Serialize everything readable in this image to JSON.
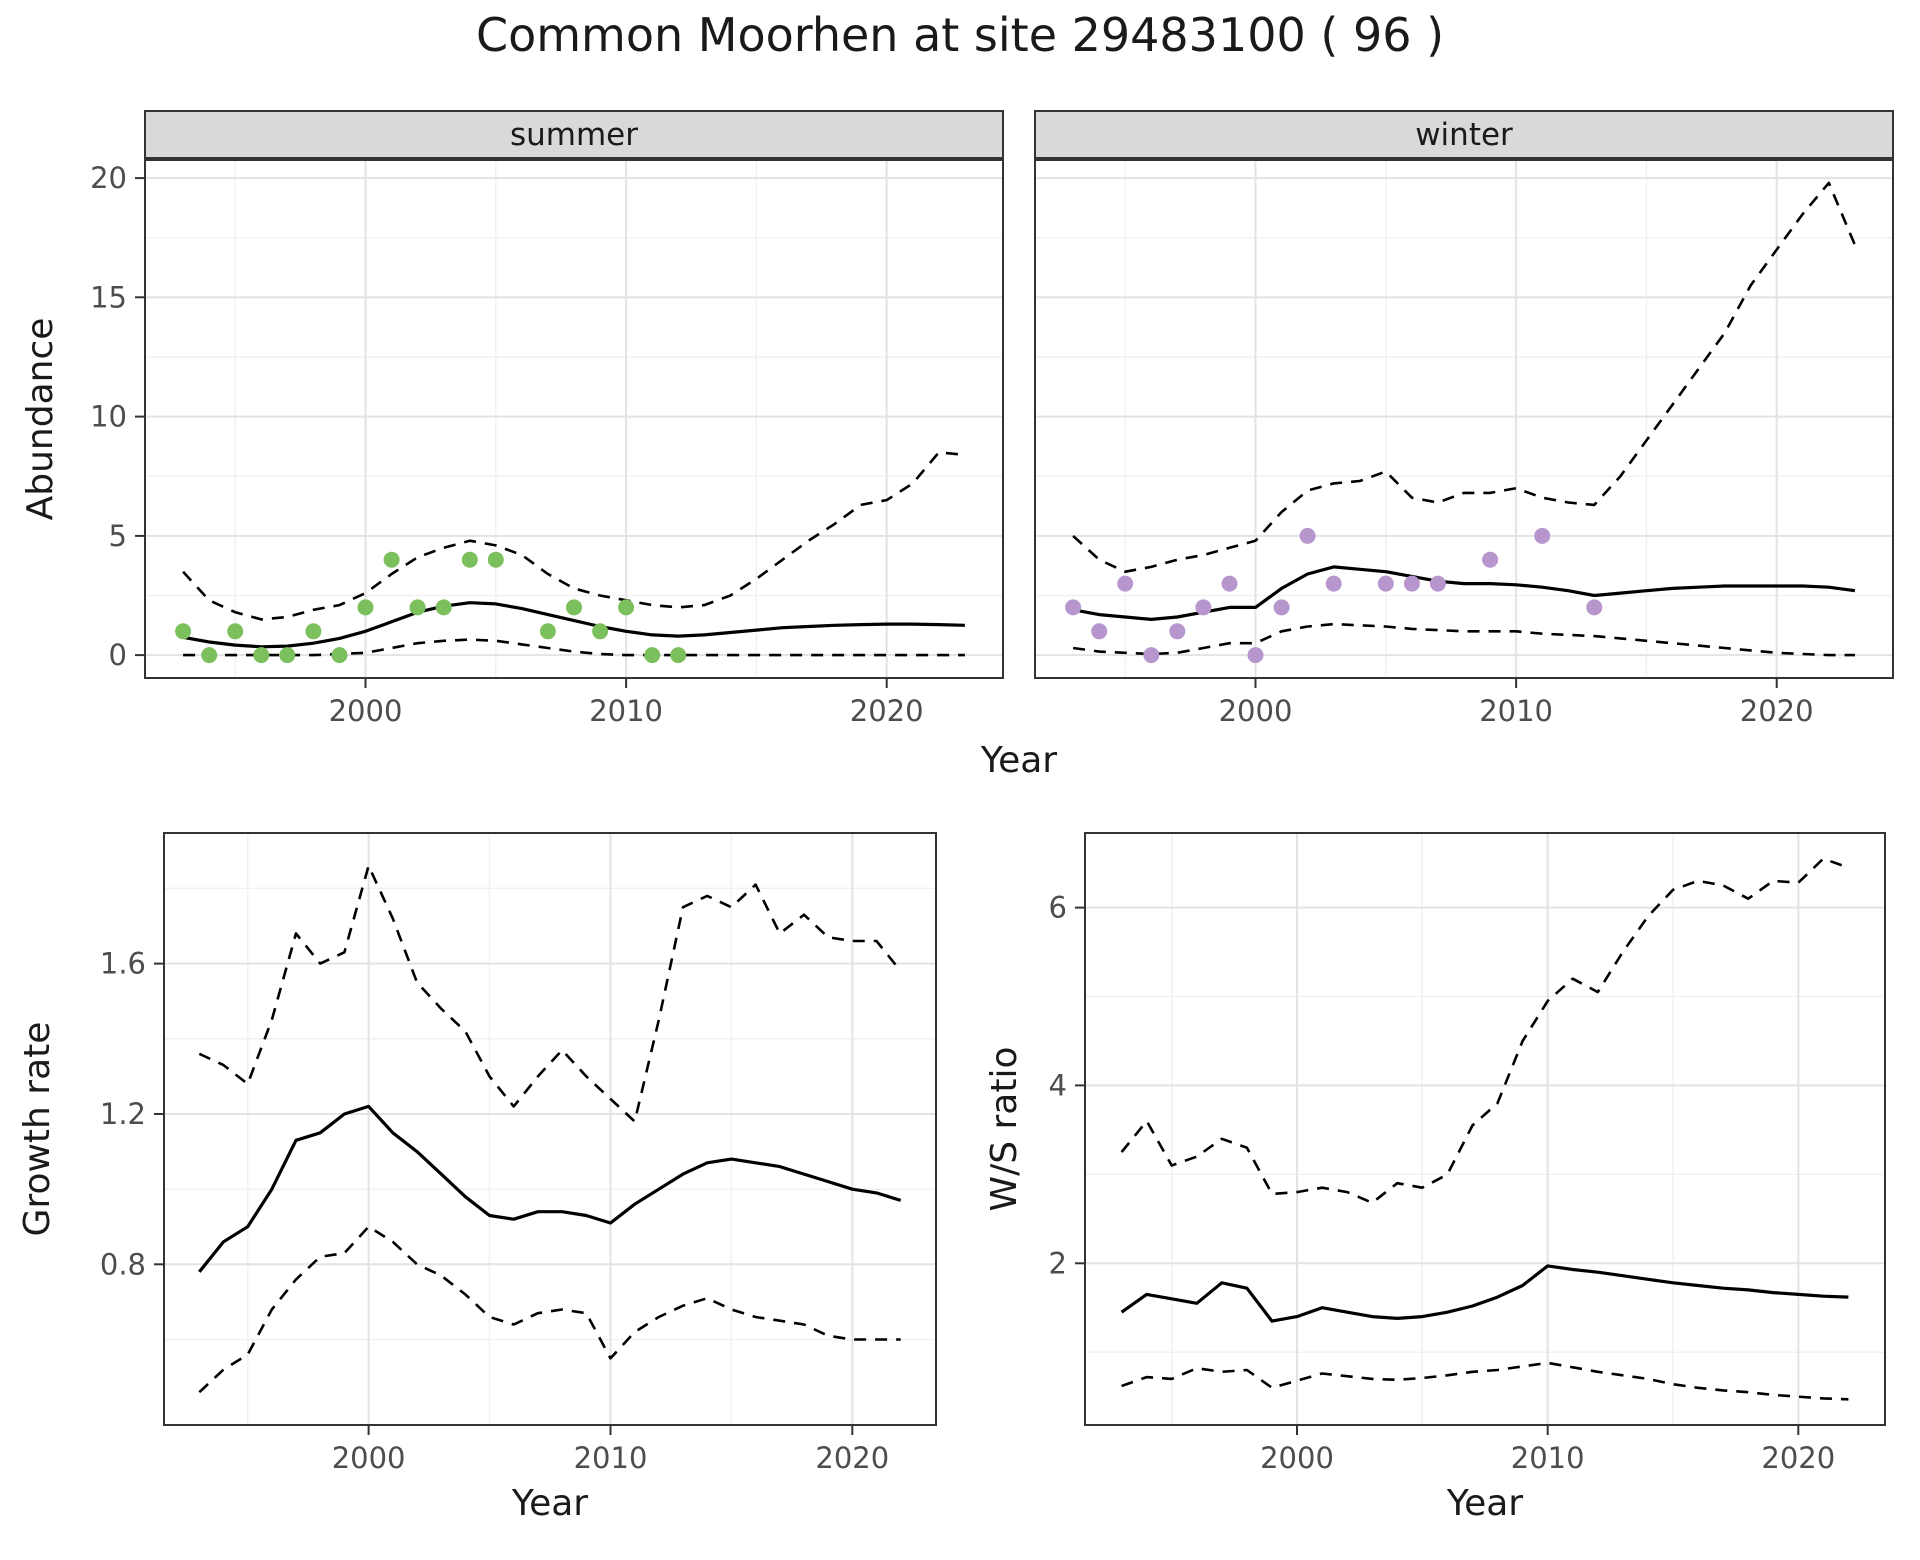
{
  "title": "Common Moorhen at site 29483100 ( 96 )",
  "colors": {
    "summer_points": "#7cc05d",
    "winter_points": "#b796ce",
    "line": "#000000",
    "strip_bg": "#d9d9d9",
    "panel_border": "#333333",
    "grid_major": "#e3e3e3",
    "grid_minor": "#f1f1f1",
    "tick_label": "#4d4d4d",
    "tick_mark": "#333333",
    "text": "#1a1a1a"
  },
  "abundance_figure": {
    "ylabel": "Abundance",
    "xlabel": "Year",
    "facets": [
      {
        "label": "summer"
      },
      {
        "label": "winter"
      }
    ]
  },
  "growth_figure": {
    "ylabel": "Growth rate",
    "xlabel": "Year"
  },
  "ratio_figure": {
    "ylabel": "W/S ratio",
    "xlabel": "Year"
  },
  "chart_data": [
    {
      "id": "abundance-summer",
      "type": "line",
      "facet": "summer",
      "xlabel": "Year",
      "ylabel": "Abundance",
      "xlim": [
        1991.5,
        2024.5
      ],
      "ylim": [
        -1.0,
        20.8
      ],
      "xticks": [
        2000,
        2010,
        2020
      ],
      "yticks": [
        0,
        5,
        10,
        15,
        20
      ],
      "xminor": [
        1995,
        2005,
        2015
      ],
      "yminor": [
        2.5,
        7.5,
        12.5,
        17.5
      ],
      "x": [
        1993,
        1994,
        1995,
        1996,
        1997,
        1998,
        1999,
        2000,
        2001,
        2002,
        2003,
        2004,
        2005,
        2006,
        2007,
        2008,
        2009,
        2010,
        2011,
        2012,
        2013,
        2014,
        2015,
        2016,
        2017,
        2018,
        2019,
        2020,
        2021,
        2022,
        2023
      ],
      "series": [
        {
          "name": "fit",
          "style": "solid",
          "y": [
            0.75,
            0.55,
            0.42,
            0.35,
            0.38,
            0.5,
            0.7,
            1.0,
            1.4,
            1.8,
            2.05,
            2.2,
            2.15,
            1.95,
            1.7,
            1.45,
            1.2,
            1.0,
            0.85,
            0.8,
            0.85,
            0.95,
            1.05,
            1.15,
            1.2,
            1.25,
            1.28,
            1.3,
            1.3,
            1.28,
            1.25
          ]
        },
        {
          "name": "ci-upper",
          "style": "dashed",
          "y": [
            3.5,
            2.3,
            1.8,
            1.5,
            1.6,
            1.9,
            2.1,
            2.6,
            3.4,
            4.1,
            4.5,
            4.8,
            4.6,
            4.2,
            3.4,
            2.8,
            2.5,
            2.3,
            2.1,
            2.0,
            2.1,
            2.5,
            3.2,
            4.0,
            4.8,
            5.5,
            6.3,
            6.5,
            7.2,
            8.5,
            8.4
          ]
        },
        {
          "name": "ci-lower",
          "style": "dashed",
          "y": [
            0,
            0,
            0,
            0,
            0,
            0,
            0.05,
            0.1,
            0.3,
            0.5,
            0.6,
            0.65,
            0.6,
            0.45,
            0.3,
            0.15,
            0.05,
            0,
            0,
            0,
            0,
            0,
            0,
            0,
            0,
            0,
            0,
            0,
            0,
            0,
            0
          ]
        },
        {
          "name": "observed",
          "style": "points",
          "color": "#7cc05d",
          "x": [
            1993,
            1994,
            1995,
            1996,
            1997,
            1998,
            1999,
            2000,
            2001,
            2002,
            2003,
            2004,
            2005,
            2007,
            2008,
            2009,
            2010,
            2011,
            2012
          ],
          "y": [
            1,
            0,
            1,
            0,
            0,
            1,
            0,
            2,
            4,
            2,
            2,
            4,
            4,
            1,
            2,
            1,
            2,
            0,
            0
          ]
        }
      ]
    },
    {
      "id": "abundance-winter",
      "type": "line",
      "facet": "winter",
      "xlabel": "Year",
      "ylabel": "Abundance",
      "yaxis": false,
      "xlim": [
        1991.5,
        2024.5
      ],
      "ylim": [
        -1.0,
        20.8
      ],
      "xticks": [
        2000,
        2010,
        2020
      ],
      "yticks": [
        0,
        5,
        10,
        15,
        20
      ],
      "xminor": [
        1995,
        2005,
        2015
      ],
      "yminor": [
        2.5,
        7.5,
        12.5,
        17.5
      ],
      "x": [
        1993,
        1994,
        1995,
        1996,
        1997,
        1998,
        1999,
        2000,
        2001,
        2002,
        2003,
        2004,
        2005,
        2006,
        2007,
        2008,
        2009,
        2010,
        2011,
        2012,
        2013,
        2014,
        2015,
        2016,
        2017,
        2018,
        2019,
        2020,
        2021,
        2022,
        2023
      ],
      "series": [
        {
          "name": "fit",
          "style": "solid",
          "y": [
            1.9,
            1.7,
            1.6,
            1.5,
            1.6,
            1.8,
            2.0,
            2.0,
            2.8,
            3.4,
            3.7,
            3.6,
            3.5,
            3.3,
            3.1,
            3.0,
            3.0,
            2.95,
            2.85,
            2.7,
            2.5,
            2.6,
            2.7,
            2.8,
            2.85,
            2.9,
            2.9,
            2.9,
            2.9,
            2.85,
            2.7
          ]
        },
        {
          "name": "ci-upper",
          "style": "dashed",
          "y": [
            5.0,
            4.0,
            3.5,
            3.7,
            4.0,
            4.2,
            4.5,
            4.8,
            6.0,
            6.9,
            7.2,
            7.3,
            7.7,
            6.6,
            6.4,
            6.8,
            6.8,
            7.0,
            6.6,
            6.4,
            6.3,
            7.5,
            9.0,
            10.5,
            12.0,
            13.5,
            15.5,
            17.0,
            18.5,
            19.8,
            17.2
          ]
        },
        {
          "name": "ci-lower",
          "style": "dashed",
          "y": [
            0.3,
            0.15,
            0.1,
            0.05,
            0.1,
            0.3,
            0.5,
            0.5,
            1.0,
            1.2,
            1.3,
            1.25,
            1.2,
            1.1,
            1.05,
            1.0,
            1.0,
            1.0,
            0.9,
            0.85,
            0.8,
            0.7,
            0.6,
            0.5,
            0.4,
            0.3,
            0.2,
            0.1,
            0.05,
            0,
            0
          ]
        },
        {
          "name": "observed",
          "style": "points",
          "color": "#b796ce",
          "x": [
            1993,
            1994,
            1995,
            1996,
            1997,
            1998,
            1999,
            2000,
            2001,
            2002,
            2003,
            2005,
            2006,
            2007,
            2009,
            2011,
            2013
          ],
          "y": [
            2,
            1,
            3,
            0,
            1,
            2,
            3,
            0,
            2,
            5,
            3,
            3,
            3,
            3,
            4,
            5,
            2
          ]
        }
      ]
    },
    {
      "id": "growth-rate",
      "type": "line",
      "xlabel": "Year",
      "ylabel": "Growth rate",
      "xlim": [
        1991.5,
        2023.5
      ],
      "ylim": [
        0.37,
        1.95
      ],
      "xticks": [
        2000,
        2010,
        2020
      ],
      "yticks": [
        0.8,
        1.2,
        1.6
      ],
      "xminor": [
        1995,
        2005,
        2015
      ],
      "yminor": [
        0.6,
        1.0,
        1.4,
        1.8
      ],
      "x": [
        1993,
        1994,
        1995,
        1996,
        1997,
        1998,
        1999,
        2000,
        2001,
        2002,
        2003,
        2004,
        2005,
        2006,
        2007,
        2008,
        2009,
        2010,
        2011,
        2012,
        2013,
        2014,
        2015,
        2016,
        2017,
        2018,
        2019,
        2020,
        2021,
        2022
      ],
      "series": [
        {
          "name": "fit",
          "style": "solid",
          "y": [
            0.78,
            0.86,
            0.9,
            1.0,
            1.13,
            1.15,
            1.2,
            1.22,
            1.15,
            1.1,
            1.04,
            0.98,
            0.93,
            0.92,
            0.94,
            0.94,
            0.93,
            0.91,
            0.96,
            1.0,
            1.04,
            1.07,
            1.08,
            1.07,
            1.06,
            1.04,
            1.02,
            1.0,
            0.99,
            0.97
          ]
        },
        {
          "name": "ci-upper",
          "style": "dashed",
          "y": [
            1.36,
            1.33,
            1.28,
            1.45,
            1.68,
            1.6,
            1.63,
            1.86,
            1.72,
            1.55,
            1.48,
            1.42,
            1.3,
            1.22,
            1.3,
            1.37,
            1.3,
            1.24,
            1.18,
            1.45,
            1.75,
            1.78,
            1.75,
            1.81,
            1.68,
            1.73,
            1.67,
            1.66,
            1.66,
            1.58
          ]
        },
        {
          "name": "ci-lower",
          "style": "dashed",
          "y": [
            0.46,
            0.52,
            0.56,
            0.68,
            0.76,
            0.82,
            0.83,
            0.9,
            0.86,
            0.8,
            0.77,
            0.72,
            0.66,
            0.64,
            0.67,
            0.68,
            0.67,
            0.55,
            0.62,
            0.66,
            0.69,
            0.71,
            0.68,
            0.66,
            0.65,
            0.64,
            0.61,
            0.6,
            0.6,
            0.6
          ]
        }
      ]
    },
    {
      "id": "ws-ratio",
      "type": "line",
      "xlabel": "Year",
      "ylabel": "W/S ratio",
      "xlim": [
        1991.5,
        2023.5
      ],
      "ylim": [
        0.17,
        6.85
      ],
      "xticks": [
        2000,
        2010,
        2020
      ],
      "yticks": [
        2,
        4,
        6
      ],
      "xminor": [
        1995,
        2005,
        2015
      ],
      "yminor": [
        1,
        3,
        5
      ],
      "x": [
        1993,
        1994,
        1995,
        1996,
        1997,
        1998,
        1999,
        2000,
        2001,
        2002,
        2003,
        2004,
        2005,
        2006,
        2007,
        2008,
        2009,
        2010,
        2011,
        2012,
        2013,
        2014,
        2015,
        2016,
        2017,
        2018,
        2019,
        2020,
        2021,
        2022
      ],
      "series": [
        {
          "name": "fit",
          "style": "solid",
          "y": [
            1.45,
            1.65,
            1.6,
            1.55,
            1.78,
            1.72,
            1.35,
            1.4,
            1.5,
            1.45,
            1.4,
            1.38,
            1.4,
            1.45,
            1.52,
            1.62,
            1.75,
            1.97,
            1.93,
            1.9,
            1.86,
            1.82,
            1.78,
            1.75,
            1.72,
            1.7,
            1.67,
            1.65,
            1.63,
            1.62
          ]
        },
        {
          "name": "ci-upper",
          "style": "dashed",
          "y": [
            3.25,
            3.6,
            3.1,
            3.2,
            3.4,
            3.3,
            2.78,
            2.8,
            2.85,
            2.8,
            2.68,
            2.9,
            2.85,
            3.0,
            3.55,
            3.8,
            4.5,
            4.95,
            5.2,
            5.05,
            5.5,
            5.9,
            6.2,
            6.3,
            6.25,
            6.1,
            6.3,
            6.28,
            6.55,
            6.45
          ]
        },
        {
          "name": "ci-lower",
          "style": "dashed",
          "y": [
            0.62,
            0.72,
            0.7,
            0.82,
            0.78,
            0.8,
            0.6,
            0.68,
            0.76,
            0.73,
            0.7,
            0.69,
            0.71,
            0.74,
            0.78,
            0.8,
            0.84,
            0.88,
            0.83,
            0.78,
            0.74,
            0.7,
            0.64,
            0.6,
            0.57,
            0.55,
            0.52,
            0.5,
            0.48,
            0.47
          ]
        }
      ]
    }
  ]
}
